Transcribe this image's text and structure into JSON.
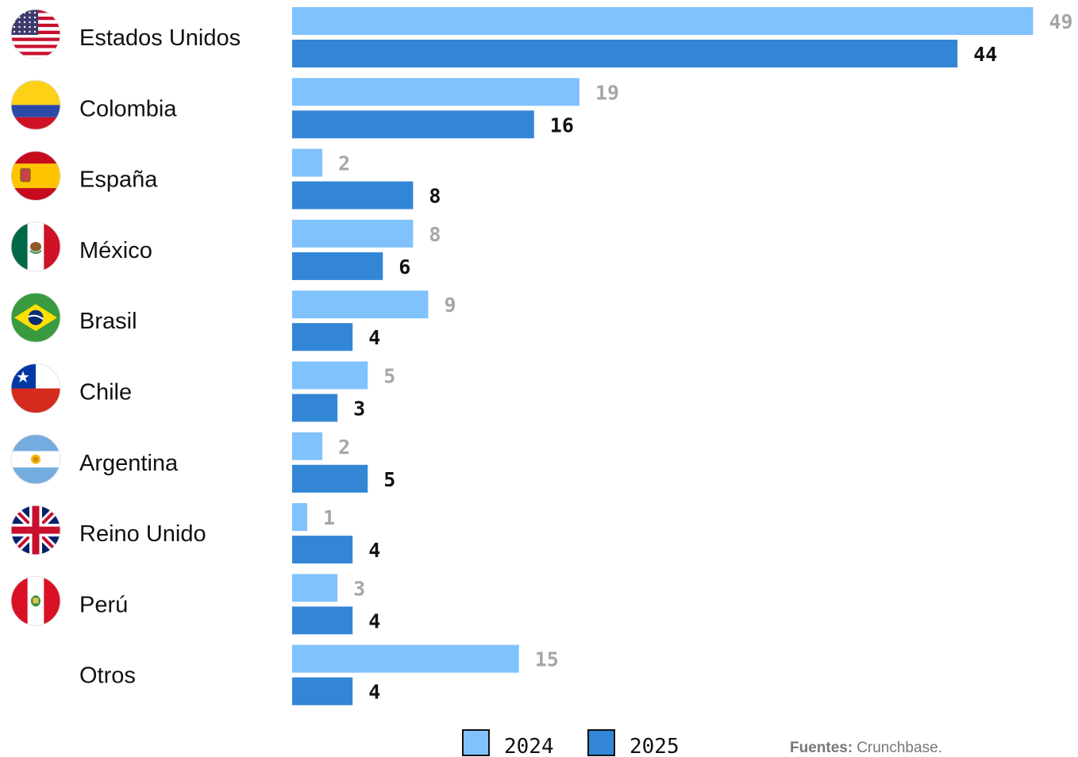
{
  "chart_data": {
    "type": "bar",
    "orientation": "horizontal",
    "categories": [
      "Estados Unidos",
      "Colombia",
      "España",
      "México",
      "Brasil",
      "Chile",
      "Argentina",
      "Reino Unido",
      "Perú",
      "Otros"
    ],
    "flag_icons": [
      "usa-flag-icon",
      "colombia-flag-icon",
      "spain-flag-icon",
      "mexico-flag-icon",
      "brazil-flag-icon",
      "chile-flag-icon",
      "argentina-flag-icon",
      "uk-flag-icon",
      "peru-flag-icon",
      ""
    ],
    "series": [
      {
        "name": "2024",
        "color": "#80c2fc",
        "label_color": "#a6a6a6",
        "values": [
          49,
          19,
          2,
          8,
          9,
          5,
          2,
          1,
          3,
          15
        ]
      },
      {
        "name": "2025",
        "color": "#3386d6",
        "label_color": "#111111",
        "values": [
          44,
          16,
          8,
          6,
          4,
          3,
          5,
          4,
          4,
          4
        ]
      }
    ],
    "xlim": [
      0,
      49
    ],
    "grid": false,
    "legend_position": "bottom"
  },
  "source": {
    "label": "Fuentes:",
    "text": "Crunchbase."
  }
}
